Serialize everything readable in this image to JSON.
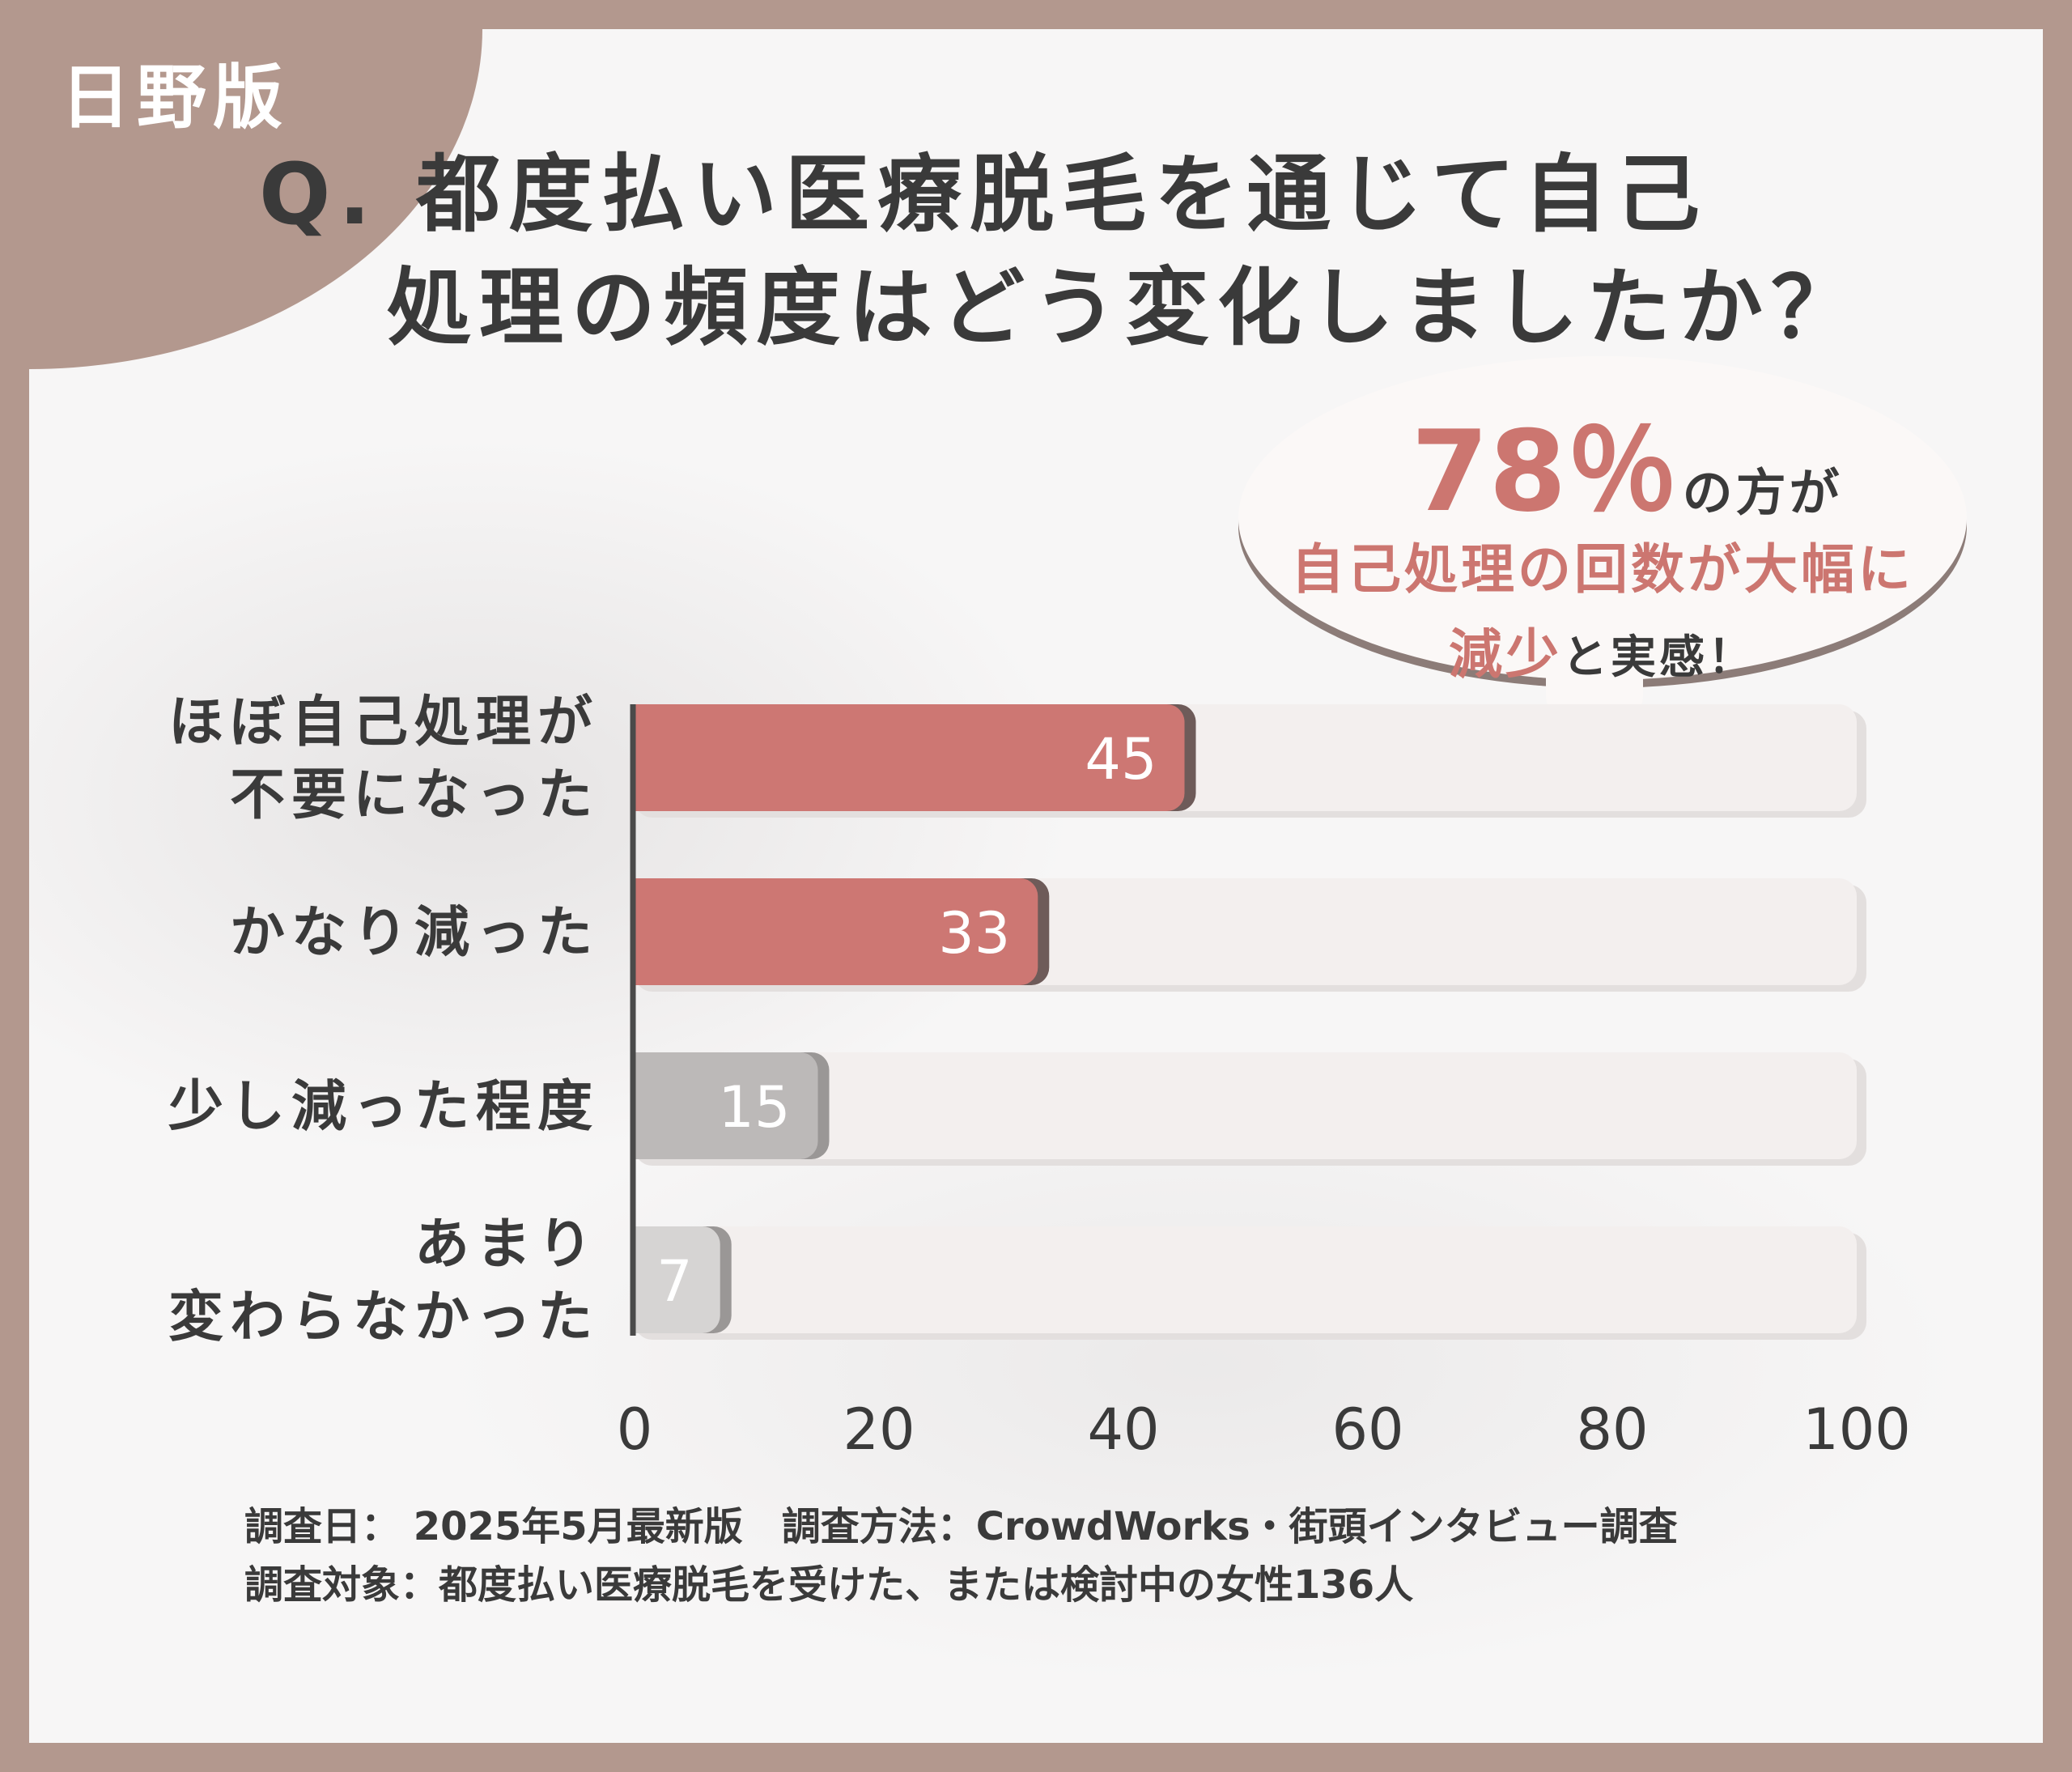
{
  "brand": "日野版",
  "question": {
    "line1": "Q. 都度払い医療脱毛を通じて自己",
    "line2": "処理の頻度はどう変化しましたか？"
  },
  "callout": {
    "percent": "78％",
    "percent_suffix": "の方が",
    "line2": "自己処理の回数が大幅に",
    "line3_highlight": "減少",
    "line3_rest": "と実感！"
  },
  "chart_data": {
    "type": "bar",
    "orientation": "horizontal",
    "categories": [
      [
        "ほぼ自己処理が",
        "不要になった"
      ],
      [
        "かなり減った"
      ],
      [
        "少し減った程度"
      ],
      [
        "あまり",
        "変わらなかった"
      ]
    ],
    "values": [
      45,
      33,
      15,
      7
    ],
    "xlim": [
      0,
      100
    ],
    "xticks": [
      "0",
      "20",
      "40",
      "60",
      "80",
      "100"
    ],
    "bar_colors": [
      "#cd7773",
      "#cd7773",
      "#bcb9b8",
      "#d6d4d3"
    ],
    "track_color": "#f3efee",
    "grid": false
  },
  "footnote": {
    "line1": "調査日： 2025年5月最新版　調査方法：CrowdWorks・街頭インタビュー調査",
    "line2": "調査対象：都度払い医療脱毛を受けた、または検討中の女性136人"
  }
}
